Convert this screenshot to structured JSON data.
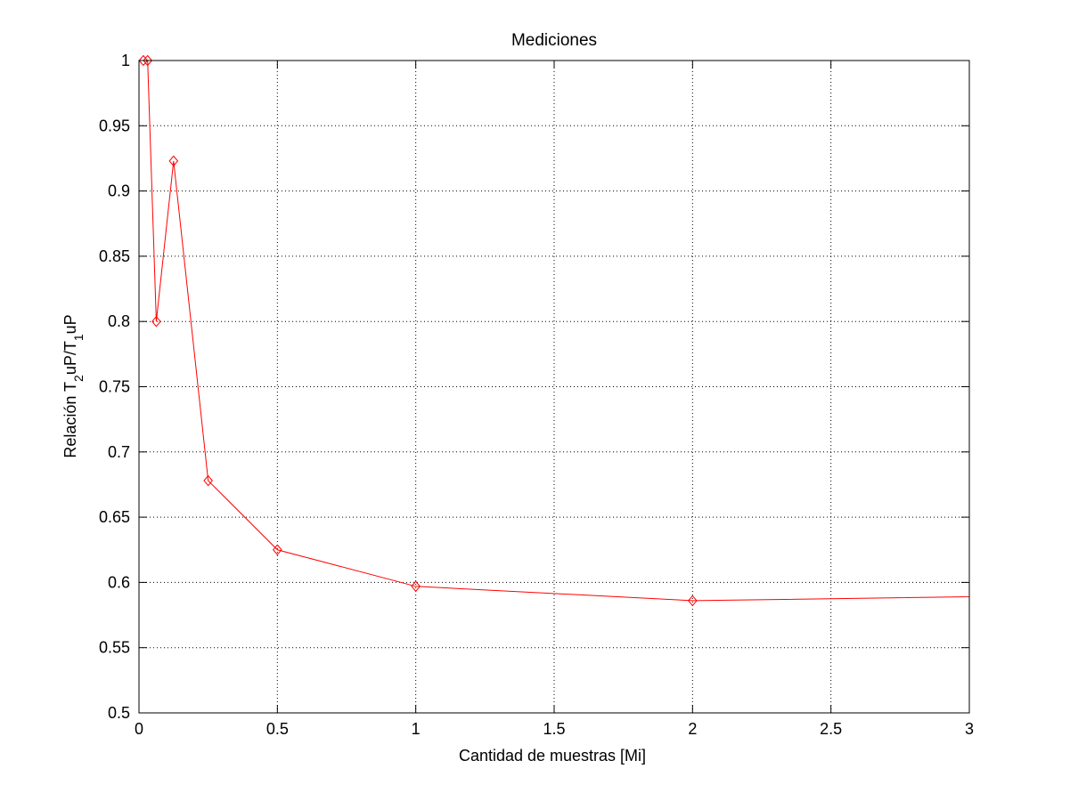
{
  "chart_data": {
    "type": "line",
    "title": "Mediciones",
    "xlabel": "Cantidad de muestras [Mi]",
    "ylabel": {
      "parts": [
        {
          "text": "Relación T",
          "sub": false
        },
        {
          "text": "2",
          "sub": true
        },
        {
          "text": "uP/T",
          "sub": false
        },
        {
          "text": "1",
          "sub": true
        },
        {
          "text": "uP",
          "sub": false
        }
      ]
    },
    "xlim": [
      0,
      3
    ],
    "ylim": [
      0.5,
      1
    ],
    "xticks": [
      0,
      0.5,
      1,
      1.5,
      2,
      2.5,
      3
    ],
    "xtick_labels": [
      "0",
      "0.5",
      "1",
      "1.5",
      "2",
      "2.5",
      "3"
    ],
    "yticks": [
      0.5,
      0.55,
      0.6,
      0.65,
      0.7,
      0.75,
      0.8,
      0.85,
      0.9,
      0.95,
      1
    ],
    "ytick_labels": [
      "0.5",
      "0.55",
      "0.6",
      "0.65",
      "0.7",
      "0.75",
      "0.8",
      "0.85",
      "0.9",
      "0.95",
      "1"
    ],
    "grid": true,
    "series": [
      {
        "color": "#ff0000",
        "marker": "diamond",
        "x": [
          0.015625,
          0.03125,
          0.0625,
          0.125,
          0.25,
          0.5,
          1,
          2,
          4
        ],
        "y": [
          1.0,
          1.0,
          0.8,
          0.923,
          0.678,
          0.625,
          0.597,
          0.586,
          0.592
        ],
        "marker_visible": [
          true,
          true,
          true,
          true,
          true,
          true,
          true,
          true,
          false
        ]
      }
    ]
  }
}
